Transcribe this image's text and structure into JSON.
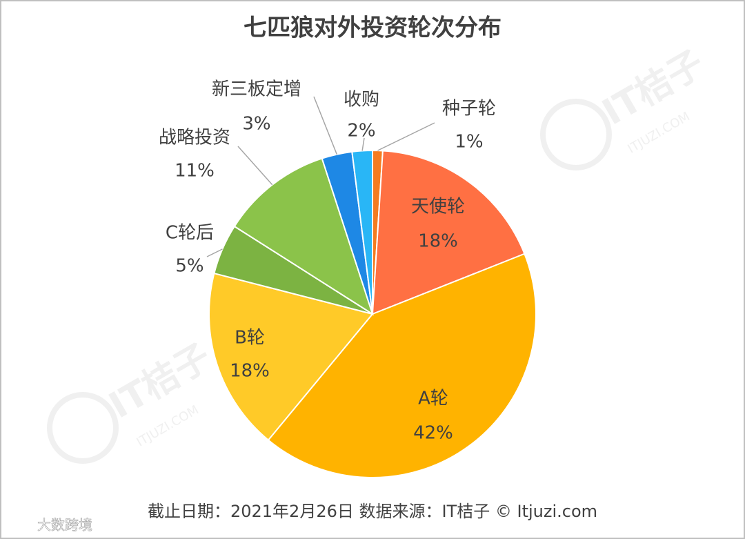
{
  "chart_data": {
    "type": "pie",
    "title": "七匹狼对外投资轮次分布",
    "categories": [
      "种子轮",
      "天使轮",
      "A轮",
      "B轮",
      "C轮后",
      "战略投资",
      "新三板定增",
      "收购"
    ],
    "values": [
      1,
      18,
      42,
      18,
      5,
      11,
      3,
      2
    ],
    "value_labels": [
      "1%",
      "18%",
      "42%",
      "18%",
      "5%",
      "11%",
      "3%",
      "2%"
    ],
    "colors": [
      "#f47b20",
      "#ff7043",
      "#ffb300",
      "#ffca28",
      "#7cb342",
      "#8bc34a",
      "#1e88e5",
      "#29b6f6"
    ],
    "footnote": "截止日期：2021年2月26日    数据来源：IT桔子 © Itjuzi.com",
    "watermark": "IT桔子",
    "watermark_sub": "ITJUZI.COM",
    "logo": "大数跨境"
  }
}
